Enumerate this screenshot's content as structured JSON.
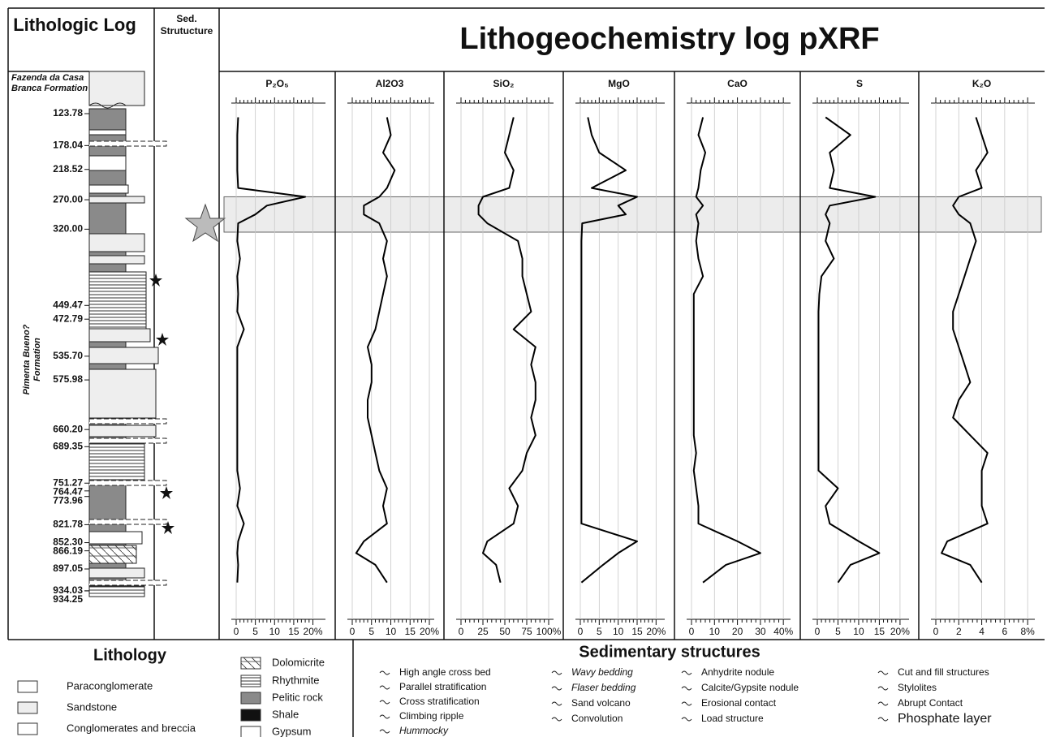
{
  "header": {
    "litho_title": "Lithologic Log",
    "sed_title": "Sed. Strutucture",
    "main_title": "Lithogeochemistry log pXRF"
  },
  "formations": [
    "Fazenda da Casa Branca Formation",
    "Pimenta Bueno? Formation"
  ],
  "depth_axis": {
    "ylim": [
      123.78,
      934.25
    ],
    "yticks": [
      123.78,
      178.04,
      218.52,
      {
        "value": 270,
        "label": "270.00"
      },
      {
        "value": 320,
        "label": "320.00"
      },
      449.47,
      472.79,
      {
        "value": 535.7,
        "label": "535.70"
      },
      575.98,
      {
        "value": 660.2,
        "label": "660.20"
      },
      689.35,
      751.27,
      764.47,
      773.96,
      821.78,
      {
        "value": 852.3,
        "label": "852.30"
      },
      866.19,
      897.05,
      934.03,
      934.25
    ],
    "samples": [
      130,
      160,
      190,
      220,
      250,
      265,
      280,
      295,
      310,
      340,
      370,
      400,
      430,
      460,
      490,
      520,
      550,
      580,
      610,
      640,
      670,
      700,
      730,
      760,
      790,
      820,
      850,
      870,
      890,
      920
    ],
    "highlight": [
      265,
      325
    ]
  },
  "chart_data": [
    {
      "type": "line",
      "title": "P₂O₅",
      "color": "#000000",
      "xlim": [
        0,
        22
      ],
      "xticks": [
        0,
        5,
        10,
        15,
        {
          "value": 20,
          "label": "20%"
        }
      ],
      "values": [
        0.5,
        0.3,
        0.3,
        0.3,
        0.5,
        18,
        8,
        5,
        0.5,
        0.3,
        1,
        0.3,
        0.5,
        0.3,
        2,
        0.3,
        0.3,
        0.3,
        0.3,
        0.3,
        0.3,
        0.3,
        0.3,
        1,
        0.3,
        2,
        0.5,
        0.3,
        0.5,
        0.3
      ]
    },
    {
      "type": "line",
      "title": "Al2O3",
      "color": "#000000",
      "xlim": [
        0,
        20
      ],
      "xticks": [
        0,
        5,
        10,
        15,
        {
          "value": 20,
          "label": "20%"
        }
      ],
      "values": [
        9,
        10,
        8,
        11,
        9,
        7,
        3,
        3,
        7,
        9,
        8,
        9,
        8,
        7,
        6,
        4,
        5,
        5,
        4,
        4,
        5,
        6,
        7,
        9,
        8,
        9,
        3,
        1,
        6,
        9
      ]
    },
    {
      "type": "line",
      "title": "SiO₂",
      "color": "#000000",
      "xlim": [
        0,
        100
      ],
      "xticks": [
        0,
        25,
        50,
        75,
        {
          "value": 100,
          "label": "100%"
        }
      ],
      "values": [
        60,
        55,
        50,
        60,
        55,
        25,
        20,
        20,
        30,
        65,
        70,
        70,
        75,
        80,
        60,
        85,
        80,
        85,
        85,
        80,
        85,
        75,
        70,
        55,
        65,
        60,
        30,
        25,
        40,
        45
      ]
    },
    {
      "type": "line",
      "title": "MgO",
      "color": "#000000",
      "xlim": [
        0,
        21
      ],
      "xticks": [
        0,
        5,
        10,
        15,
        {
          "value": 20,
          "label": "20%"
        }
      ],
      "values": [
        2,
        3,
        5,
        12,
        3,
        15,
        10,
        12,
        0.5,
        0.3,
        0.3,
        0.3,
        0.3,
        0.3,
        0.3,
        0.3,
        0.3,
        0.3,
        0.3,
        0.3,
        0.3,
        0.3,
        0.3,
        0.3,
        0.3,
        0.3,
        15,
        10,
        6,
        0.3
      ]
    },
    {
      "type": "line",
      "title": "CaO",
      "color": "#000000",
      "xlim": [
        0,
        41
      ],
      "xticks": [
        0,
        10,
        20,
        30,
        {
          "value": 40,
          "label": "40%"
        }
      ],
      "values": [
        5,
        3,
        6,
        4,
        3,
        2,
        5,
        2,
        3,
        2,
        3,
        5,
        1,
        1,
        1,
        1,
        1,
        1,
        1,
        1,
        1,
        2,
        1,
        2,
        3,
        3,
        20,
        30,
        15,
        5
      ]
    },
    {
      "type": "line",
      "title": "S",
      "color": "#000000",
      "xlim": [
        0,
        21
      ],
      "xticks": [
        0,
        5,
        10,
        15,
        {
          "value": 20,
          "label": "20%"
        }
      ],
      "values": [
        2,
        8,
        3,
        4,
        3,
        14,
        3,
        2,
        3,
        2,
        4,
        1,
        0.5,
        0.3,
        0.3,
        0.3,
        0.3,
        0.3,
        0.3,
        0.3,
        0.3,
        0.3,
        0.3,
        5,
        2,
        3,
        10,
        15,
        8,
        5
      ]
    },
    {
      "type": "line",
      "title": "K₂O",
      "color": "#000000",
      "xlim": [
        0,
        8.2
      ],
      "xticks": [
        0,
        2,
        4,
        6,
        {
          "value": 8,
          "label": "8%"
        }
      ],
      "values": [
        3.5,
        4,
        4.5,
        3.5,
        4,
        2,
        1.5,
        2,
        3,
        3.5,
        3,
        2.5,
        2,
        1.5,
        1.5,
        2,
        2.5,
        3,
        2,
        1.5,
        3,
        4.5,
        4,
        4,
        4,
        4.5,
        1,
        0.5,
        3,
        4
      ]
    }
  ],
  "legend": {
    "lithology_title": "Lithology",
    "lithology": [
      "Paraconglomerate",
      "Sandstone",
      "Conglomerates and breccia",
      "Dolomicrite",
      "Rhythmite",
      "Pelitic rock",
      "Shale",
      "Gypsum"
    ],
    "structures_title": "Sedimentary structures",
    "structures": [
      "High angle cross bed",
      "Parallel stratification",
      "Cross stratification",
      "Climbing ripple",
      "Hummocky",
      "Wavy bedding",
      "Flaser bedding",
      "Sand volcano",
      "Convolution",
      "Anhydrite nodule",
      "Calcite/Gypsite nodule",
      "Erosional contact",
      "Load structure",
      "Cut and fill structures",
      "Stylolites",
      "Abrupt Contact",
      "Phosphate layer"
    ]
  }
}
